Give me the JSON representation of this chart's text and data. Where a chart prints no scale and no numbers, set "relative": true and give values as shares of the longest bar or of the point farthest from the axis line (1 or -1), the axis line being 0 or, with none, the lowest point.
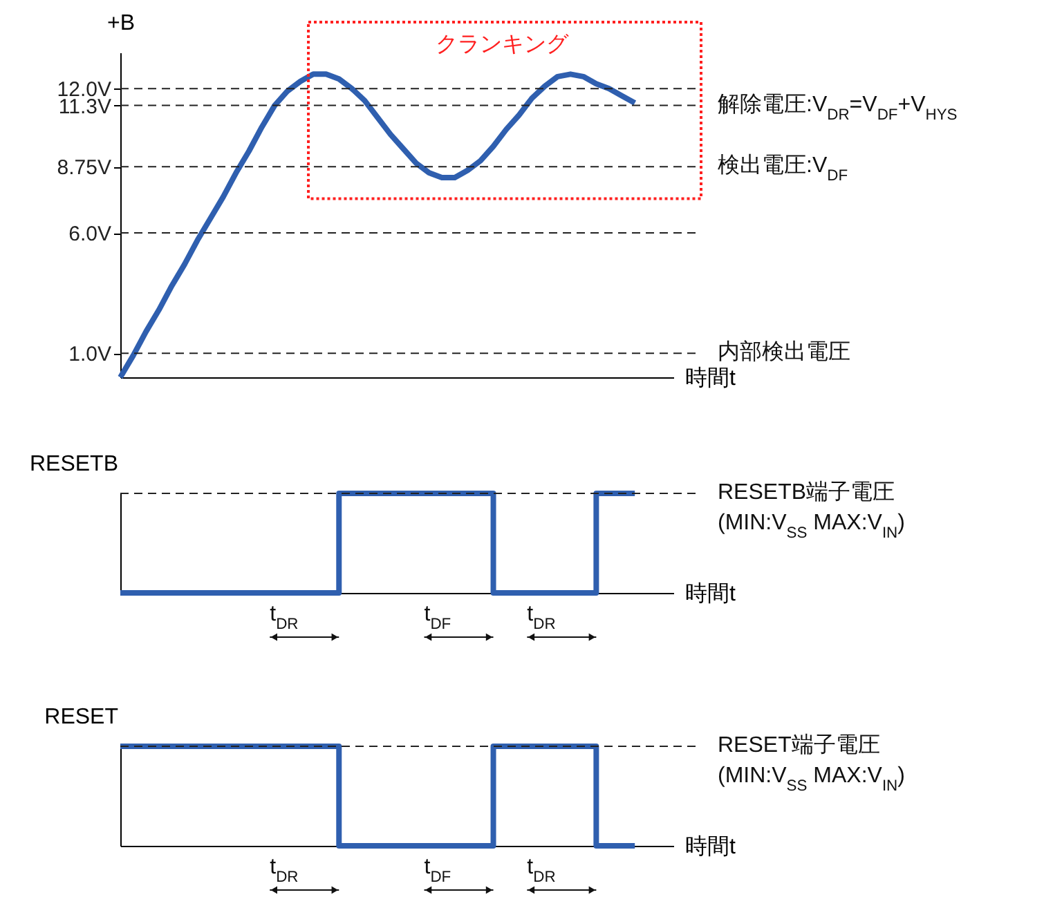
{
  "chart_data": [
    {
      "type": "line",
      "ylabel": "+B",
      "xlabel": "時間t",
      "ylim": [
        0,
        13.5
      ],
      "yticks": [
        {
          "value": 1.0,
          "label": "1.0V"
        },
        {
          "value": 6.0,
          "label": "6.0V"
        },
        {
          "value": 8.75,
          "label": "8.75V"
        },
        {
          "value": 11.3,
          "label": "11.3V"
        },
        {
          "value": 12.0,
          "label": "12.0V"
        }
      ],
      "tick_labels": "y",
      "line_style": "solid",
      "categories": [
        null,
        null,
        null,
        null,
        null,
        null,
        null,
        null,
        null,
        null,
        null,
        null,
        null,
        null,
        null,
        null,
        null,
        null,
        null,
        null,
        null,
        null,
        null,
        null,
        null,
        null,
        null,
        null,
        null,
        null,
        null,
        null,
        null,
        null,
        null,
        null,
        null,
        null,
        null,
        null,
        null,
        null,
        null,
        null
      ],
      "series": [
        {
          "color": "#2f5faf",
          "values": [
            0,
            0.9,
            1.9,
            2.8,
            3.8,
            4.7,
            5.7,
            6.6,
            7.5,
            8.5,
            9.4,
            10.4,
            11.3,
            11.9,
            12.3,
            12.6,
            12.6,
            12.4,
            12.0,
            11.5,
            10.8,
            10.1,
            9.5,
            8.9,
            8.5,
            8.3,
            8.3,
            8.6,
            9.0,
            9.6,
            10.3,
            10.9,
            11.6,
            12.1,
            12.5,
            12.6,
            12.5,
            12.2,
            12.0,
            11.7,
            11.4,
            null,
            null,
            null
          ]
        }
      ],
      "ref_lines": [
        {
          "axis": "y",
          "value": 12.0,
          "label": null,
          "line_style": "dashed"
        },
        {
          "axis": "y",
          "value": 11.3,
          "label": "解除電圧:V$_{DR}$=V$_{DF}$+V$_{HYS}$",
          "line_style": "dashed"
        },
        {
          "axis": "y",
          "value": 8.75,
          "label": "検出電圧:V$_{DF}$",
          "line_style": "dashed"
        },
        {
          "axis": "y",
          "value": 6.0,
          "label": null,
          "line_style": "dashed"
        },
        {
          "axis": "y",
          "value": 1.0,
          "label": "内部検出電圧",
          "line_style": "dashed"
        }
      ],
      "annotations": [
        "クランキング"
      ]
    },
    {
      "type": "step",
      "ylabel": "RESETB",
      "xlabel": "時間t",
      "relative": true,
      "tick_labels": false,
      "line_style": "solid",
      "categories": [
        null,
        null,
        null,
        null,
        null,
        null,
        null,
        null,
        null,
        null,
        null,
        null,
        null,
        null,
        null,
        null,
        null,
        null,
        null,
        null,
        null,
        null,
        null,
        null,
        null,
        null,
        null,
        null,
        null,
        null,
        null,
        null,
        null,
        null,
        null,
        null,
        null,
        null,
        null,
        null,
        null,
        null,
        null,
        null
      ],
      "series": [
        {
          "color": "#2f5faf",
          "values": [
            0,
            0,
            0,
            0,
            0,
            0,
            0,
            0,
            0,
            0,
            0,
            0,
            0,
            0,
            0,
            0,
            0,
            1,
            1,
            1,
            1,
            1,
            1,
            1,
            1,
            1,
            1,
            1,
            1,
            0,
            0,
            0,
            0,
            0,
            0,
            0,
            0,
            1,
            1,
            1,
            1,
            null,
            null,
            null
          ]
        }
      ],
      "ref_lines": [
        {
          "axis": "y",
          "value": 1,
          "label": "RESETB端子電圧\n(MIN:V$_{SS}$  MAX:V$_{IN}$)",
          "line_style": "dashed"
        }
      ],
      "annotations": [
        "t$_{DR}$",
        "t$_{DF}$",
        "t$_{DR}$"
      ]
    },
    {
      "type": "step",
      "ylabel": "RESET",
      "xlabel": "時間t",
      "relative": true,
      "tick_labels": false,
      "line_style": "solid",
      "categories": [
        null,
        null,
        null,
        null,
        null,
        null,
        null,
        null,
        null,
        null,
        null,
        null,
        null,
        null,
        null,
        null,
        null,
        null,
        null,
        null,
        null,
        null,
        null,
        null,
        null,
        null,
        null,
        null,
        null,
        null,
        null,
        null,
        null,
        null,
        null,
        null,
        null,
        null,
        null,
        null,
        null,
        null,
        null,
        null
      ],
      "series": [
        {
          "color": "#2f5faf",
          "values": [
            1,
            1,
            1,
            1,
            1,
            1,
            1,
            1,
            1,
            1,
            1,
            1,
            1,
            1,
            1,
            1,
            1,
            0,
            0,
            0,
            0,
            0,
            0,
            0,
            0,
            0,
            0,
            0,
            0,
            1,
            1,
            1,
            1,
            1,
            1,
            1,
            1,
            0,
            0,
            0,
            0,
            null,
            null,
            null
          ]
        }
      ],
      "ref_lines": [
        {
          "axis": "y",
          "value": 1,
          "label": "RESET端子電圧\n(MIN:V$_{SS}$  MAX:V$_{IN}$)",
          "line_style": "dashed"
        }
      ],
      "annotations": [
        "t$_{DR}$",
        "t$_{DF}$",
        "t$_{DR}$"
      ]
    }
  ]
}
